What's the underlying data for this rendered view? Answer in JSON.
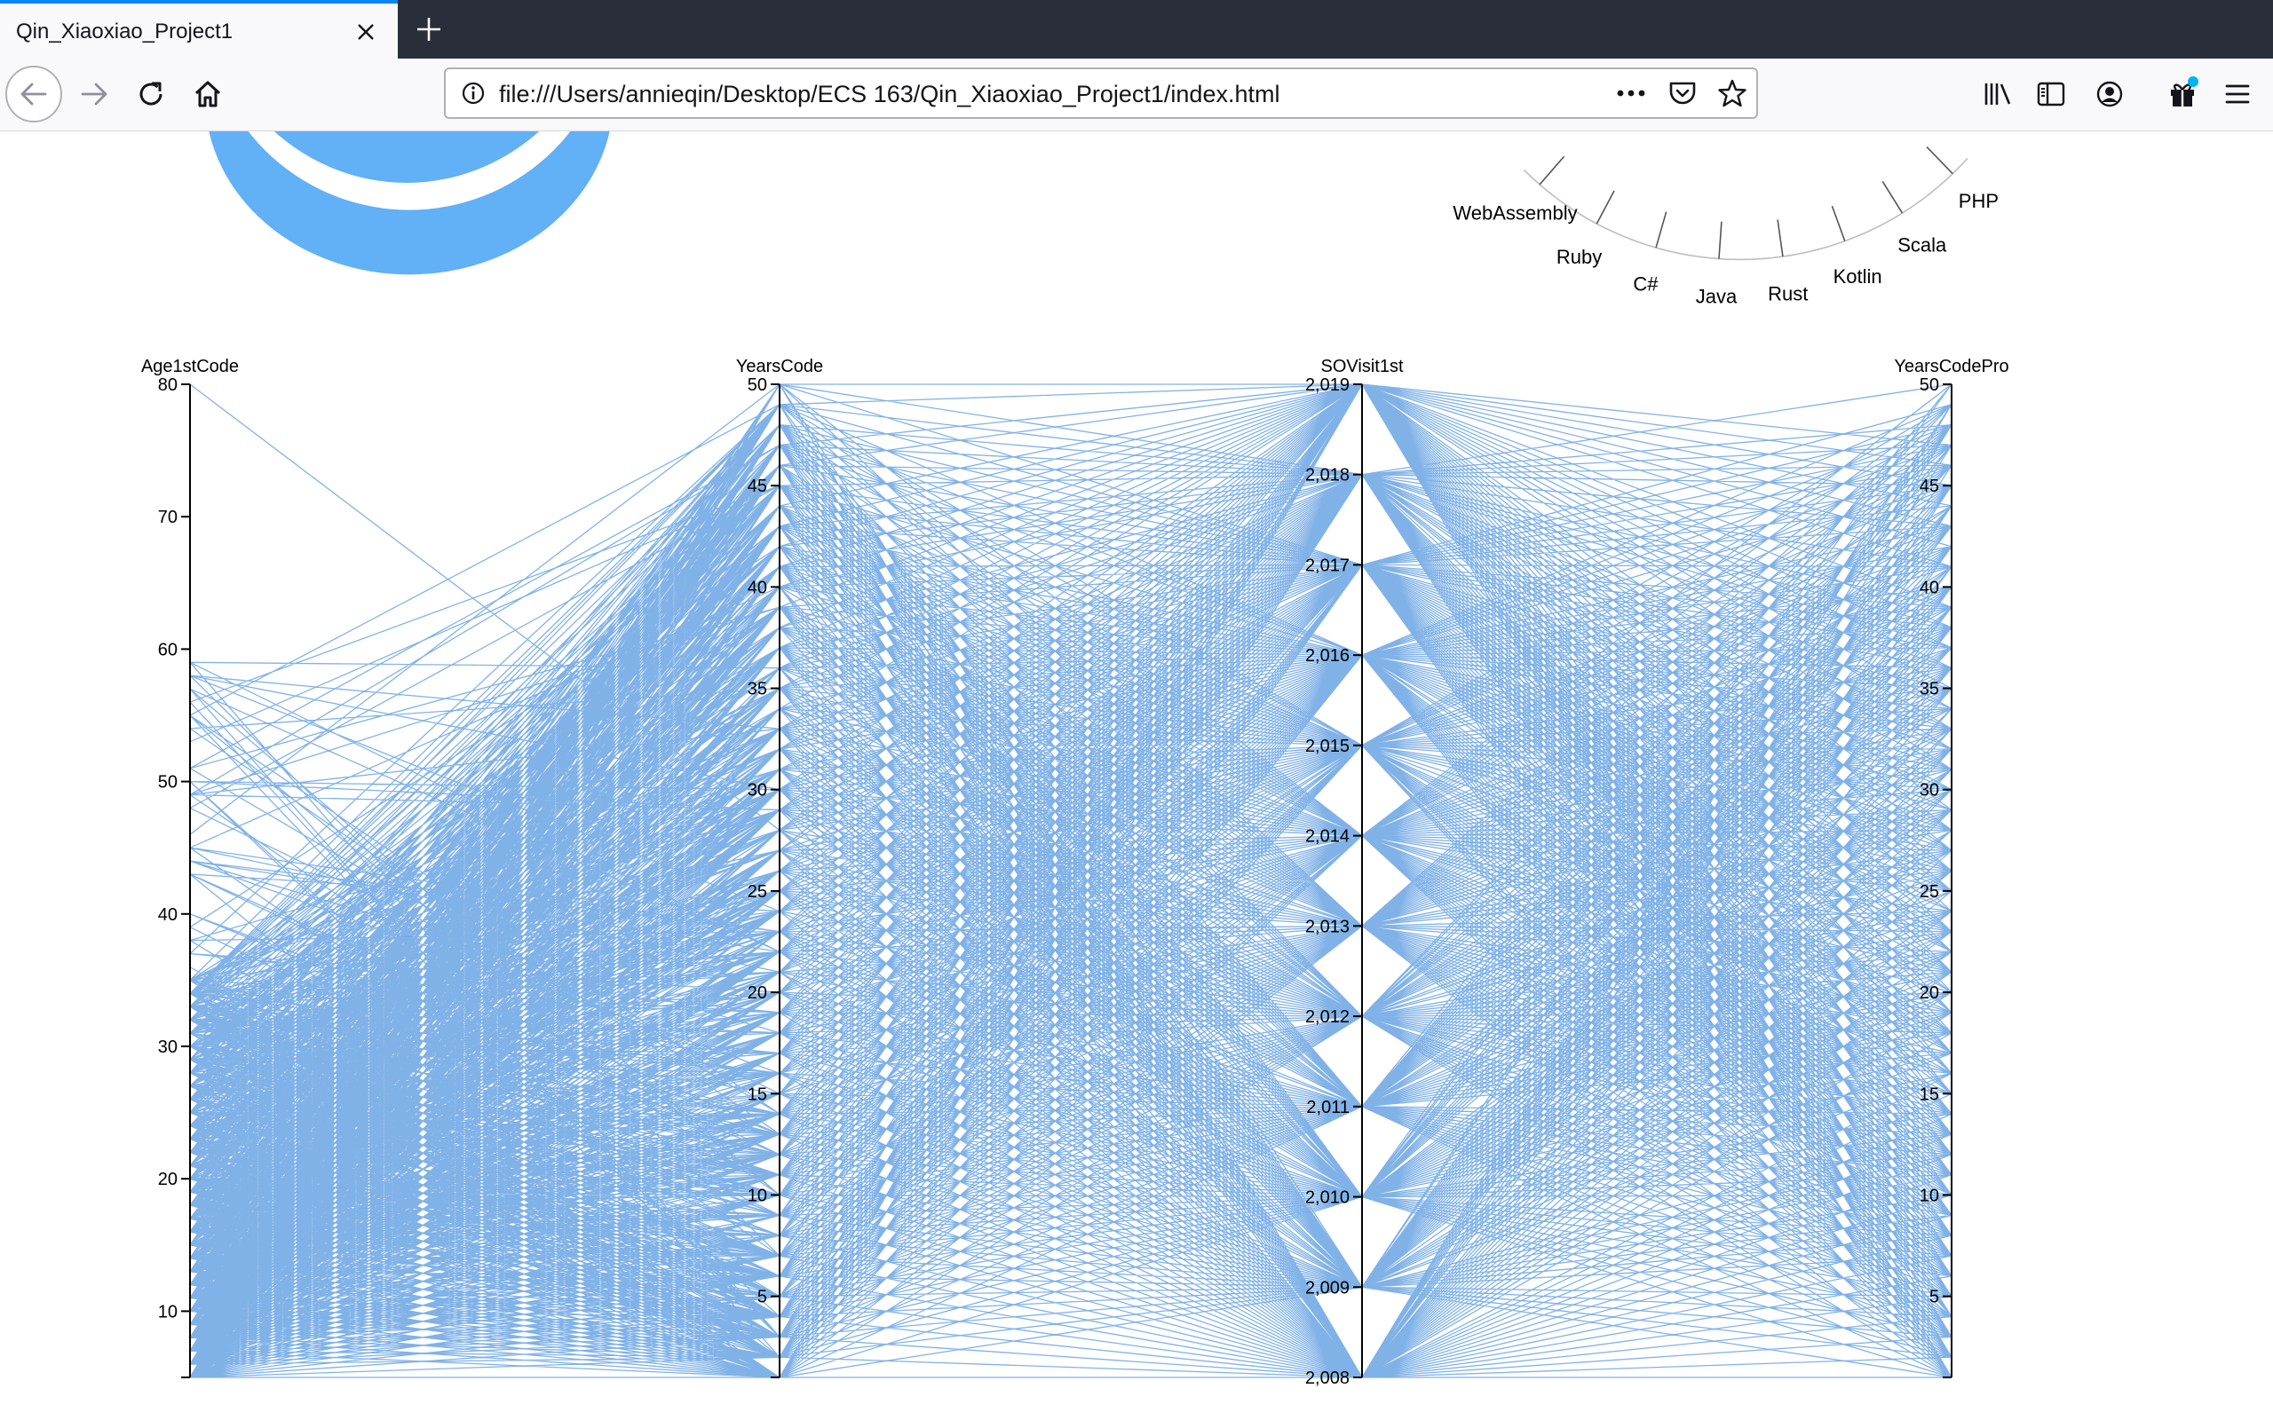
{
  "browser": {
    "tab_title": "Qin_Xiaoxiao_Project1",
    "url": "file:///Users/annieqin/Desktop/ECS 163/Qin_Xiaoxiao_Project1/index.html",
    "accent_color": "#0a84ff"
  },
  "radial_labels": [
    "WebAssembly",
    "Ruby",
    "C#",
    "Java",
    "Rust",
    "Kotlin",
    "Scala",
    "PHP"
  ],
  "chart_data": {
    "type": "parallel-coordinates",
    "line_color": "#1a73d4",
    "axes": [
      {
        "name": "Age1stCode",
        "domain": [
          5,
          80
        ],
        "ticks": [
          "10",
          "20",
          "30",
          "40",
          "50",
          "60",
          "70",
          "80"
        ],
        "tick_values": [
          10,
          20,
          30,
          40,
          50,
          60,
          70,
          80
        ]
      },
      {
        "name": "YearsCode",
        "domain": [
          1,
          50
        ],
        "ticks": [
          "5",
          "10",
          "15",
          "20",
          "25",
          "30",
          "35",
          "40",
          "45",
          "50"
        ],
        "tick_values": [
          5,
          10,
          15,
          20,
          25,
          30,
          35,
          40,
          45,
          50
        ]
      },
      {
        "name": "SOVisit1st",
        "domain": [
          2008,
          2019
        ],
        "ticks": [
          "2,008",
          "2,009",
          "2,010",
          "2,011",
          "2,012",
          "2,013",
          "2,014",
          "2,015",
          "2,016",
          "2,017",
          "2,018",
          "2,019"
        ],
        "tick_values": [
          2008,
          2009,
          2010,
          2011,
          2012,
          2013,
          2014,
          2015,
          2016,
          2017,
          2018,
          2019
        ]
      },
      {
        "name": "YearsCodePro",
        "domain": [
          1,
          50
        ],
        "ticks": [
          "5",
          "10",
          "15",
          "20",
          "25",
          "30",
          "35",
          "40",
          "45",
          "50"
        ],
        "tick_values": [
          5,
          10,
          15,
          20,
          25,
          30,
          35,
          40,
          45,
          50
        ]
      }
    ]
  }
}
